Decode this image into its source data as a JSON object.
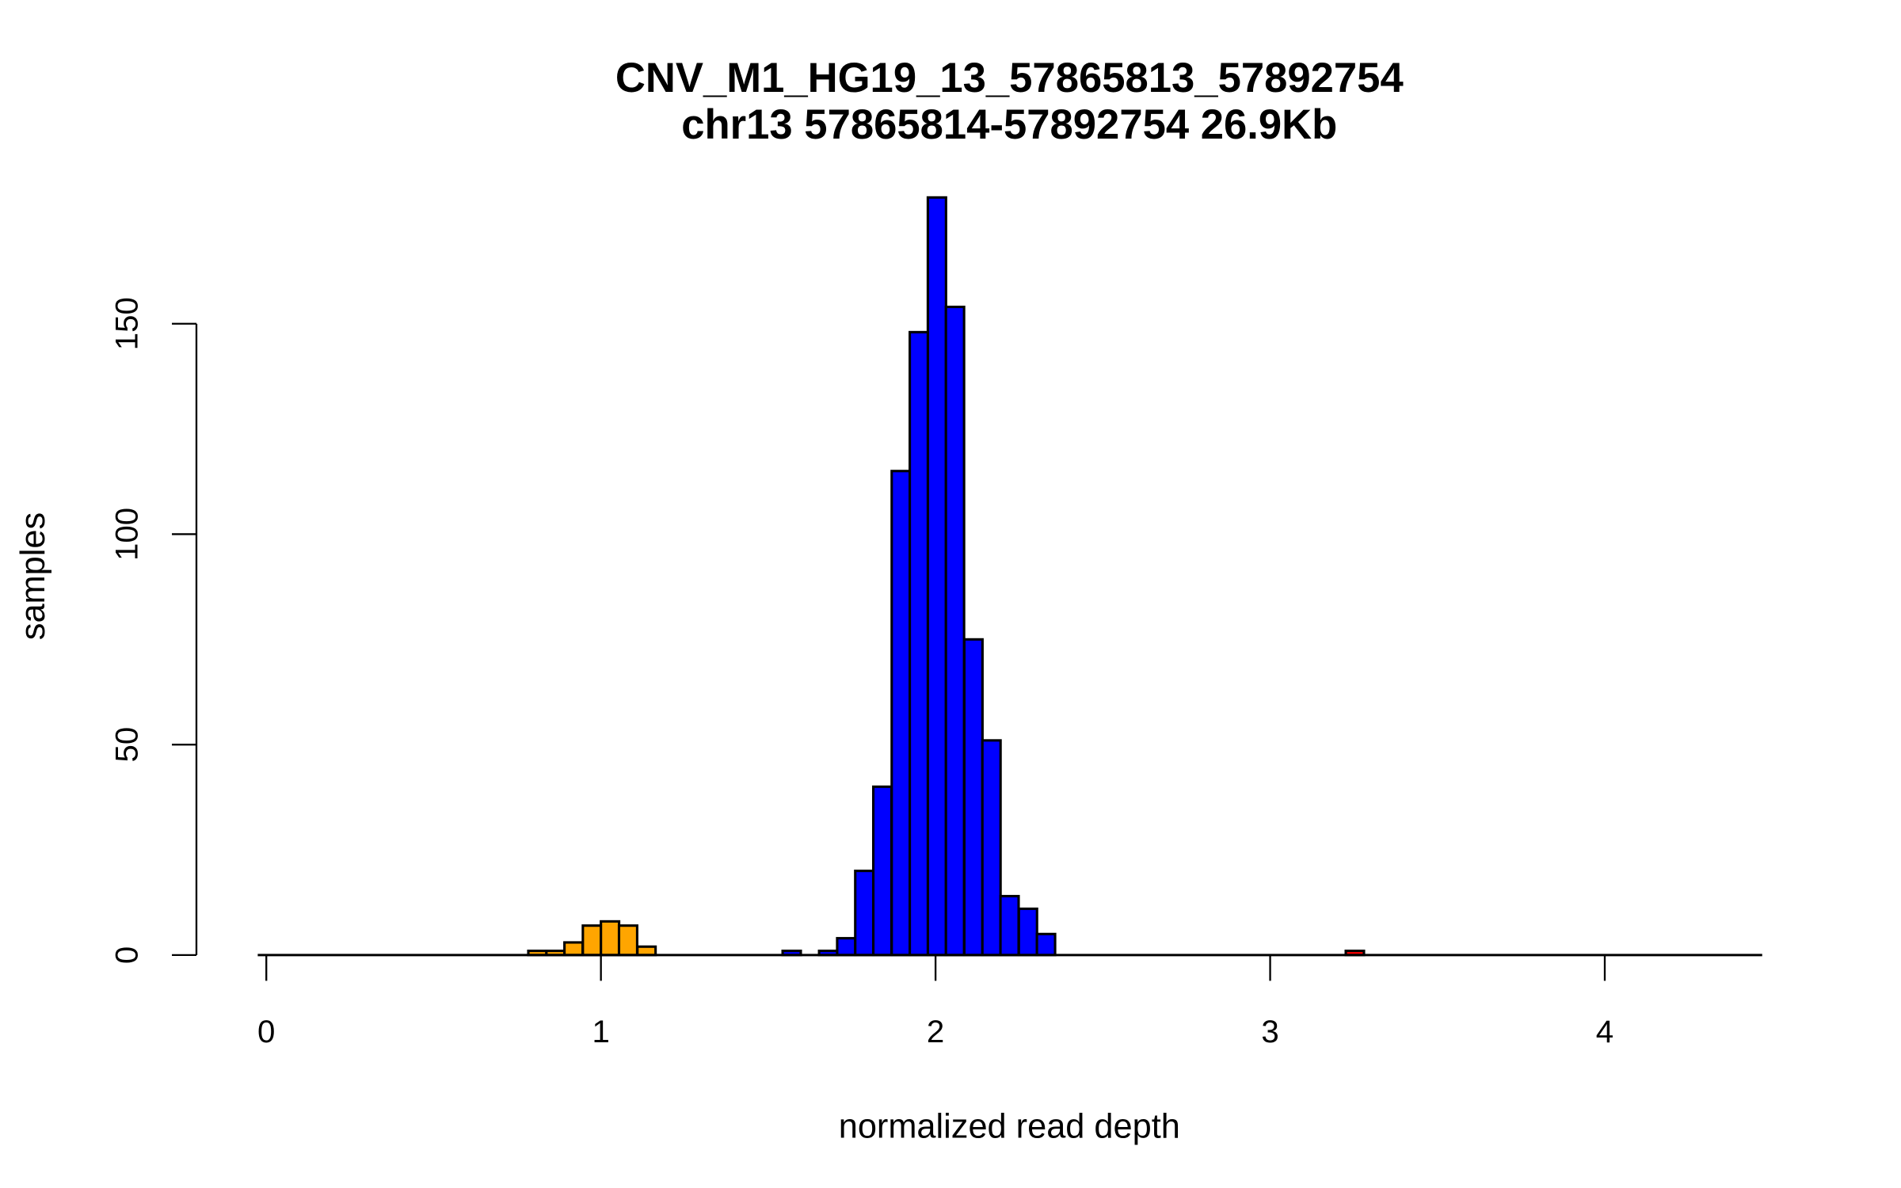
{
  "chart_data": {
    "type": "bar",
    "title": "CNV_M1_HG19_13_57865813_57892754",
    "subtitle": "chr13 57865814-57892754 26.9Kb",
    "xlabel": "normalized read depth",
    "ylabel": "samples",
    "xlim": [
      -0.02,
      4.45
    ],
    "ylim": [
      0,
      180
    ],
    "x_ticks": [
      "0",
      "1",
      "2",
      "3",
      "4"
    ],
    "y_ticks": [
      "0",
      "50",
      "100",
      "150"
    ],
    "bin_width": 0.0543,
    "bins": [
      {
        "start": 0.783,
        "count": 1,
        "color": "#FFA500"
      },
      {
        "start": 0.837,
        "count": 1,
        "color": "#FFA500"
      },
      {
        "start": 0.891,
        "count": 3,
        "color": "#FFA500"
      },
      {
        "start": 0.946,
        "count": 7,
        "color": "#FFA500"
      },
      {
        "start": 1.0,
        "count": 8,
        "color": "#FFA500"
      },
      {
        "start": 1.054,
        "count": 7,
        "color": "#FFA500"
      },
      {
        "start": 1.109,
        "count": 2,
        "color": "#FFA500"
      },
      {
        "start": 1.543,
        "count": 1,
        "color": "#0000FF"
      },
      {
        "start": 1.652,
        "count": 1,
        "color": "#0000FF"
      },
      {
        "start": 1.706,
        "count": 4,
        "color": "#0000FF"
      },
      {
        "start": 1.76,
        "count": 20,
        "color": "#0000FF"
      },
      {
        "start": 1.814,
        "count": 40,
        "color": "#0000FF"
      },
      {
        "start": 1.869,
        "count": 115,
        "color": "#0000FF"
      },
      {
        "start": 1.923,
        "count": 148,
        "color": "#0000FF"
      },
      {
        "start": 1.977,
        "count": 180,
        "color": "#0000FF"
      },
      {
        "start": 2.031,
        "count": 154,
        "color": "#0000FF"
      },
      {
        "start": 2.086,
        "count": 75,
        "color": "#0000FF"
      },
      {
        "start": 2.14,
        "count": 51,
        "color": "#0000FF"
      },
      {
        "start": 2.194,
        "count": 14,
        "color": "#0000FF"
      },
      {
        "start": 2.249,
        "count": 11,
        "color": "#0000FF"
      },
      {
        "start": 2.303,
        "count": 5,
        "color": "#0000FF"
      },
      {
        "start": 3.226,
        "count": 1,
        "color": "#FF0000"
      }
    ],
    "grid": false,
    "legend": "none"
  }
}
